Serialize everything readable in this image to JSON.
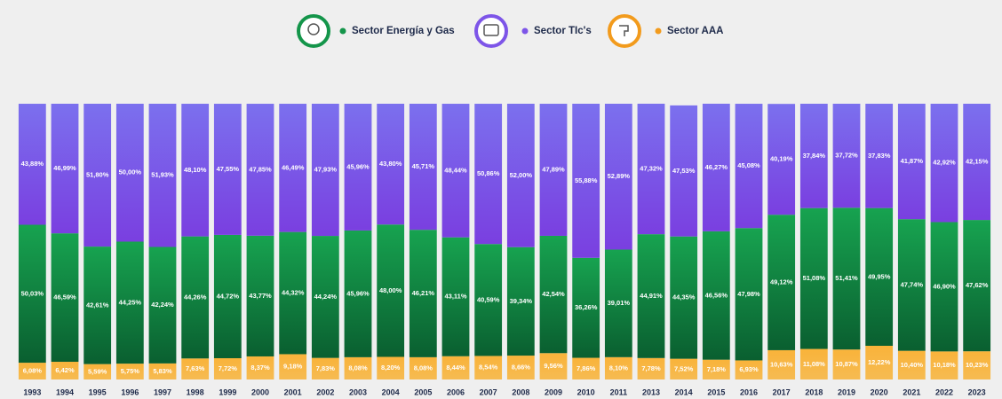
{
  "chart_data": {
    "type": "stacked_bar",
    "categories": [
      "1993",
      "1994",
      "1995",
      "1996",
      "1997",
      "1998",
      "1999",
      "2000",
      "2001",
      "2002",
      "2003",
      "2004",
      "2005",
      "2006",
      "2007",
      "2008",
      "2009",
      "2010",
      "2011",
      "2013",
      "2014",
      "2015",
      "2016",
      "2017",
      "2018",
      "2019",
      "2020",
      "2021",
      "2022",
      "2023"
    ],
    "ylim": [
      0,
      100
    ],
    "series": [
      {
        "name": "Sector AAA",
        "color": "#f7b23b",
        "values": [
          6.08,
          6.42,
          5.59,
          5.75,
          5.83,
          7.63,
          7.72,
          8.37,
          9.18,
          7.83,
          8.08,
          8.2,
          8.08,
          8.44,
          8.54,
          8.66,
          9.56,
          7.86,
          8.1,
          7.78,
          7.52,
          7.18,
          6.93,
          10.63,
          11.08,
          10.87,
          12.22,
          10.4,
          10.18,
          10.23
        ],
        "value_labels": [
          "6,08%",
          "6,42%",
          "5,59%",
          "5,75%",
          "5,83%",
          "7,63%",
          "7,72%",
          "8,37%",
          "9,18%",
          "7,83%",
          "8,08%",
          "8,20%",
          "8,08%",
          "8,44%",
          "8,54%",
          "8,66%",
          "9,56%",
          "7,86%",
          "8,10%",
          "7,78%",
          "7,52%",
          "7,18%",
          "6,93%",
          "10,63%",
          "11,08%",
          "10,87%",
          "12,22%",
          "10,40%",
          "10,18%",
          "10,23%"
        ]
      },
      {
        "name": "Sector Energía y Gas",
        "color": "#0f8a45",
        "values": [
          50.03,
          46.59,
          42.61,
          44.25,
          42.24,
          44.26,
          44.72,
          43.77,
          44.32,
          44.24,
          45.96,
          48.0,
          46.21,
          43.11,
          40.59,
          39.34,
          42.54,
          36.26,
          39.01,
          44.91,
          44.35,
          46.56,
          47.98,
          49.12,
          51.08,
          51.41,
          49.95,
          47.74,
          46.9,
          47.62
        ],
        "value_labels": [
          "50,03%",
          "46,59%",
          "42,61%",
          "44,25%",
          "42,24%",
          "44,26%",
          "44,72%",
          "43,77%",
          "44,32%",
          "44,24%",
          "45,96%",
          "48,00%",
          "46,21%",
          "43,11%",
          "40,59%",
          "39,34%",
          "42,54%",
          "36,26%",
          "39,01%",
          "44,91%",
          "44,35%",
          "46,56%",
          "47,98%",
          "49,12%",
          "51,08%",
          "51,41%",
          "49,95%",
          "47,74%",
          "46,90%",
          "47,62%"
        ]
      },
      {
        "name": "Sector TIc's",
        "color": "#7d55e8",
        "values": [
          43.88,
          46.99,
          51.8,
          50.0,
          51.93,
          48.1,
          47.55,
          47.85,
          46.49,
          47.93,
          45.96,
          43.8,
          45.71,
          48.44,
          50.86,
          52.0,
          47.89,
          55.88,
          52.89,
          47.32,
          47.53,
          46.27,
          45.08,
          40.19,
          37.84,
          37.72,
          37.83,
          41.87,
          42.92,
          42.15
        ],
        "value_labels": [
          "43,88%",
          "46,99%",
          "51,80%",
          "50,00%",
          "51,93%",
          "48,10%",
          "47,55%",
          "47,85%",
          "46,49%",
          "47,93%",
          "45,96%",
          "43,80%",
          "45,71%",
          "48,44%",
          "50,86%",
          "52,00%",
          "47,89%",
          "55,88%",
          "52,89%",
          "47,32%",
          "47,53%",
          "46,27%",
          "45,08%",
          "40,19%",
          "37,84%",
          "37,72%",
          "37,83%",
          "41,87%",
          "42,92%",
          "42,15%"
        ]
      }
    ]
  }
}
